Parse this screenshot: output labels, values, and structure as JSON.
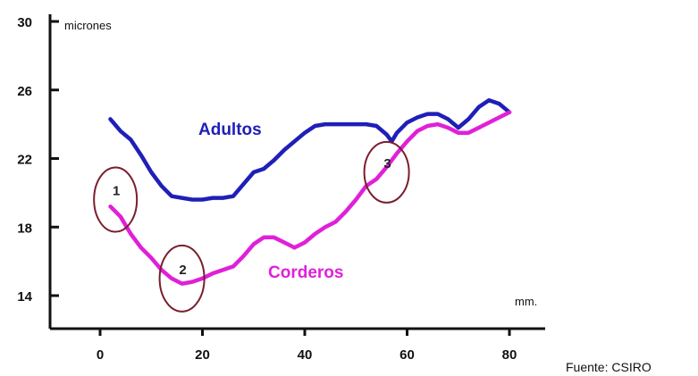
{
  "chart_data": {
    "type": "line",
    "ylabel": "micrones",
    "xlabel": "mm.",
    "xlim": [
      0,
      80
    ],
    "ylim": [
      12,
      30
    ],
    "x_ticks": [
      0,
      20,
      40,
      60,
      80
    ],
    "y_ticks": [
      14,
      18,
      22,
      26,
      30
    ],
    "grid": false,
    "series": [
      {
        "name": "Adultos",
        "color": "#1f1fb8",
        "points": [
          [
            2,
            24.3
          ],
          [
            4,
            23.6
          ],
          [
            6,
            23.1
          ],
          [
            8,
            22.2
          ],
          [
            10,
            21.2
          ],
          [
            12,
            20.4
          ],
          [
            14,
            19.8
          ],
          [
            16,
            19.7
          ],
          [
            18,
            19.6
          ],
          [
            20,
            19.6
          ],
          [
            22,
            19.7
          ],
          [
            24,
            19.7
          ],
          [
            26,
            19.8
          ],
          [
            28,
            20.5
          ],
          [
            30,
            21.2
          ],
          [
            32,
            21.4
          ],
          [
            34,
            21.9
          ],
          [
            36,
            22.5
          ],
          [
            38,
            23.0
          ],
          [
            40,
            23.5
          ],
          [
            42,
            23.9
          ],
          [
            44,
            24.0
          ],
          [
            46,
            24.0
          ],
          [
            48,
            24.0
          ],
          [
            50,
            24.0
          ],
          [
            52,
            24.0
          ],
          [
            54,
            23.9
          ],
          [
            56,
            23.4
          ],
          [
            57,
            23.0
          ],
          [
            58,
            23.5
          ],
          [
            60,
            24.1
          ],
          [
            62,
            24.4
          ],
          [
            64,
            24.6
          ],
          [
            66,
            24.6
          ],
          [
            68,
            24.3
          ],
          [
            70,
            23.8
          ],
          [
            72,
            24.3
          ],
          [
            74,
            25.0
          ],
          [
            76,
            25.4
          ],
          [
            78,
            25.2
          ],
          [
            80,
            24.7
          ]
        ]
      },
      {
        "name": "Corderos",
        "color": "#e020d8",
        "points": [
          [
            2,
            19.2
          ],
          [
            4,
            18.6
          ],
          [
            6,
            17.6
          ],
          [
            8,
            16.8
          ],
          [
            10,
            16.2
          ],
          [
            12,
            15.5
          ],
          [
            14,
            15.0
          ],
          [
            16,
            14.7
          ],
          [
            18,
            14.8
          ],
          [
            20,
            15.0
          ],
          [
            22,
            15.3
          ],
          [
            24,
            15.5
          ],
          [
            26,
            15.7
          ],
          [
            28,
            16.3
          ],
          [
            30,
            17.0
          ],
          [
            32,
            17.4
          ],
          [
            34,
            17.4
          ],
          [
            36,
            17.1
          ],
          [
            38,
            16.8
          ],
          [
            40,
            17.1
          ],
          [
            42,
            17.6
          ],
          [
            44,
            18.0
          ],
          [
            46,
            18.3
          ],
          [
            48,
            18.9
          ],
          [
            50,
            19.6
          ],
          [
            52,
            20.4
          ],
          [
            54,
            20.8
          ],
          [
            56,
            21.5
          ],
          [
            58,
            22.3
          ],
          [
            60,
            23.0
          ],
          [
            62,
            23.6
          ],
          [
            64,
            23.9
          ],
          [
            66,
            24.0
          ],
          [
            68,
            23.8
          ],
          [
            70,
            23.5
          ],
          [
            72,
            23.5
          ],
          [
            74,
            23.8
          ],
          [
            76,
            24.1
          ],
          [
            78,
            24.4
          ],
          [
            80,
            24.7
          ]
        ]
      }
    ],
    "annotations": [
      {
        "label": "1",
        "x": 3,
        "y": 19.6
      },
      {
        "label": "2",
        "x": 16,
        "y": 15.0
      },
      {
        "label": "3",
        "x": 56,
        "y": 21.2
      }
    ],
    "ann_color": "#7a1e2e",
    "axis_color": "#111111"
  },
  "source": "Fuente: CSIRO"
}
